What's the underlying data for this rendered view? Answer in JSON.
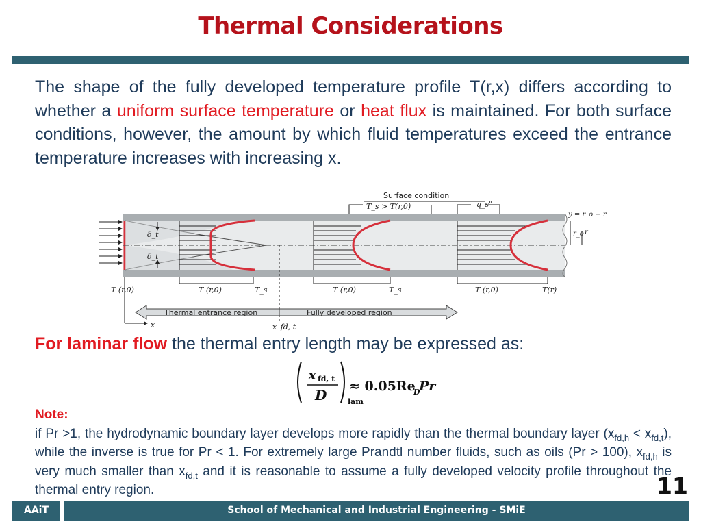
{
  "slide": {
    "title": "Thermal Considerations",
    "page_number": "11"
  },
  "intro": {
    "part1": "The shape of the fully developed temperature profile T(r,x) differs according to whether a ",
    "highlight1": "uniform surface temperature",
    "part2": " or ",
    "highlight2": "heat flux",
    "part3": " is maintained. For both surface conditions, however, the amount by which fluid temperatures exceed the entrance temperature increases with increasing x."
  },
  "figure": {
    "surface_condition": "Surface condition",
    "ts_condition": "T_s > T(r,0)",
    "qs_condition": "q_s\"",
    "radial_coord": "y = r_o − r",
    "r_o": "r_o",
    "r": "r",
    "delta_t": "δ_t",
    "inlet_temp": "T (r,0)",
    "temp_r0": "T (r,0)",
    "ts": "T_s",
    "temp_r": "T(r)",
    "x_axis": "x",
    "entrance_region": "Thermal entrance region",
    "developed_region": "Fully developed region",
    "x_fd_t": "x_fd, t"
  },
  "laminar": {
    "lead": "For laminar flow",
    "rest": " the thermal entry length may be expressed as:"
  },
  "equation": {
    "numerator": "x",
    "numerator_sub": "fd, t",
    "denominator": "D",
    "subscript": "lam",
    "rhs": "≈ 0.05Re",
    "rhs_sub": "D",
    "rhs_end": "Pr"
  },
  "note": {
    "label": "Note:",
    "line1": "if Pr >1, the hydrodynamic boundary layer develops more rapidly than the thermal boundary layer (x",
    "sub_fdh": "fd,h",
    "lt": " < x",
    "sub_fdt": "fd,t",
    "line2": "), while the inverse is true for Pr < 1. For extremely large Prandtl number fluids, such as oils (Pr > 100), x",
    "sub_fdh2": "fd,h",
    "line3": " is very much smaller than x",
    "sub_fdt2": "fd,t",
    "line4": " and it is reasonable to assume a fully developed velocity profile throughout the thermal entry region."
  },
  "footer": {
    "left": "AAiT",
    "right": "School of Mechanical and Industrial Engineering - SMiE"
  },
  "colors": {
    "accent_red": "#e11b22",
    "title_red": "#b5121b",
    "teal": "#2e6171",
    "body_text": "#1f3b5a"
  }
}
